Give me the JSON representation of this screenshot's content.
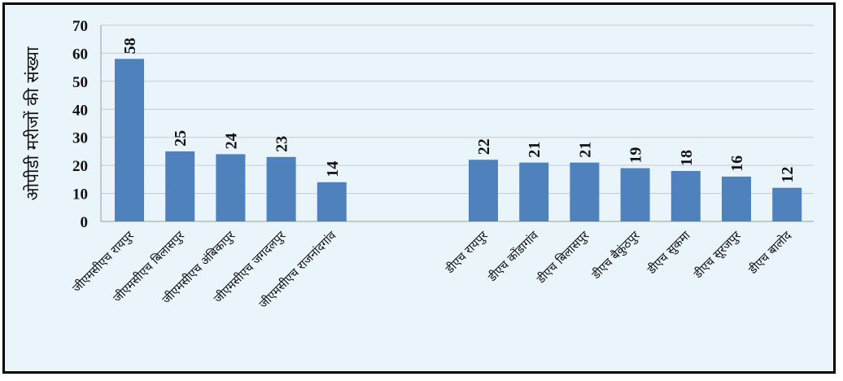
{
  "chart_data": {
    "type": "bar",
    "title": "",
    "ylabel": "ओपीडी मरीजों की संख्या",
    "xlabel": "",
    "ylim": [
      0,
      70
    ],
    "yticks": [
      0,
      10,
      20,
      30,
      40,
      50,
      60,
      70
    ],
    "grid": true,
    "legend": "none",
    "bar_color": "#4f81bd",
    "background_color": "#e9f4fb",
    "groups": [
      {
        "categories": [
          "जीएमसीएच रायपुर",
          "जीएमसीएच बिलासपुर",
          "जीएमसीएच अंबिकापुर",
          "जीएमसीएच जगदलपुर",
          "जीएमसीएच राजनांदगांव"
        ],
        "values": [
          58,
          25,
          24,
          23,
          14
        ]
      },
      {
        "categories": [
          "डीएच रायपुर",
          "डीएच कोंडागांव",
          "डीएच बिलासपुर",
          "डीएच बैकुंठपुर",
          "डीएच सुकमा",
          "डीएच सूरजपुर",
          "डीएच बालोद"
        ],
        "values": [
          22,
          21,
          21,
          19,
          18,
          16,
          12
        ]
      }
    ]
  }
}
